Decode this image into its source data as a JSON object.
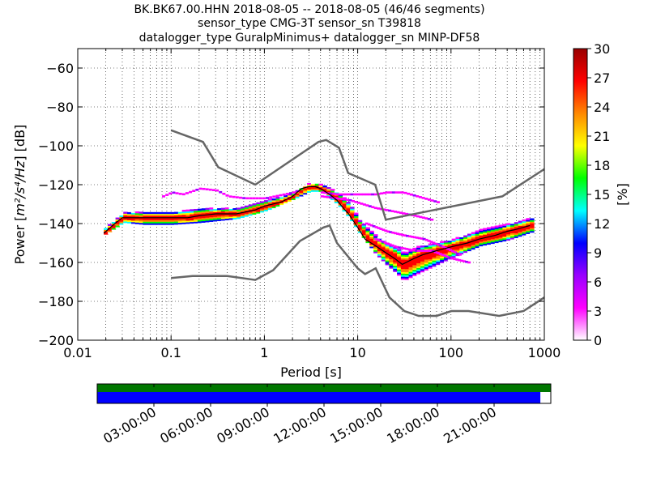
{
  "chart_data": {
    "type": "heatmap",
    "title_lines": [
      "BK.BK67.00.HHN   2018-08-05 -- 2018-08-05  (46/46 segments)",
      "sensor_type CMG-3T sensor_sn T39818",
      "datalogger_type GuralpMinimus+ datalogger_sn MINP-DF58"
    ],
    "xlabel": "Period [s]",
    "ylabel_prefix": "Power [",
    "ylabel_units": "m²/s⁴/Hz",
    "ylabel_suffix": "] [dB]",
    "x_scale": "log",
    "xlim": [
      0.01,
      1000
    ],
    "ylim": [
      -200,
      -50
    ],
    "x_ticks": [
      {
        "value": 0.01,
        "label": "0.01"
      },
      {
        "value": 0.1,
        "label": "0.1"
      },
      {
        "value": 1,
        "label": "1"
      },
      {
        "value": 10,
        "label": "10"
      },
      {
        "value": 100,
        "label": "100"
      },
      {
        "value": 1000,
        "label": "1000"
      }
    ],
    "y_ticks": [
      {
        "value": -60,
        "label": "−60"
      },
      {
        "value": -80,
        "label": "−80"
      },
      {
        "value": -100,
        "label": "−100"
      },
      {
        "value": -120,
        "label": "−120"
      },
      {
        "value": -140,
        "label": "−140"
      },
      {
        "value": -160,
        "label": "−160"
      },
      {
        "value": -180,
        "label": "−180"
      },
      {
        "value": -200,
        "label": "−200"
      }
    ],
    "grid": true,
    "colorbar": {
      "label": "[%]",
      "range": [
        0,
        30
      ],
      "ticks": [
        {
          "value": 0,
          "label": "0"
        },
        {
          "value": 3,
          "label": "3"
        },
        {
          "value": 6,
          "label": "6"
        },
        {
          "value": 9,
          "label": "9"
        },
        {
          "value": 12,
          "label": "12"
        },
        {
          "value": 15,
          "label": "15"
        },
        {
          "value": 18,
          "label": "18"
        },
        {
          "value": 21,
          "label": "21"
        },
        {
          "value": 24,
          "label": "24"
        },
        {
          "value": 27,
          "label": "27"
        },
        {
          "value": 30,
          "label": "30"
        }
      ],
      "colors": [
        "#ffffff",
        "#ff00ff",
        "#9900ff",
        "#0000ff",
        "#00ffff",
        "#00ff00",
        "#ffff00",
        "#ff8800",
        "#ff0000",
        "#990000"
      ]
    },
    "mode_line": [
      [
        0.019,
        -145
      ],
      [
        0.025,
        -140
      ],
      [
        0.03,
        -137
      ],
      [
        0.04,
        -137
      ],
      [
        0.06,
        -137
      ],
      [
        0.08,
        -137
      ],
      [
        0.1,
        -137
      ],
      [
        0.15,
        -137
      ],
      [
        0.2,
        -136
      ],
      [
        0.3,
        -135
      ],
      [
        0.5,
        -135
      ],
      [
        0.8,
        -133
      ],
      [
        1,
        -131
      ],
      [
        1.5,
        -129
      ],
      [
        2,
        -126
      ],
      [
        2.5,
        -122
      ],
      [
        3,
        -121
      ],
      [
        3.5,
        -121
      ],
      [
        4,
        -122
      ],
      [
        5,
        -125
      ],
      [
        6,
        -128
      ],
      [
        7,
        -132
      ],
      [
        8,
        -135
      ],
      [
        10,
        -142
      ],
      [
        12,
        -148
      ],
      [
        15,
        -151
      ],
      [
        20,
        -155
      ],
      [
        25,
        -158
      ],
      [
        30,
        -161
      ],
      [
        40,
        -158
      ],
      [
        50,
        -156
      ],
      [
        70,
        -154
      ],
      [
        100,
        -152
      ],
      [
        150,
        -150
      ],
      [
        200,
        -148
      ],
      [
        300,
        -146
      ],
      [
        400,
        -144
      ],
      [
        500,
        -143
      ],
      [
        700,
        -141
      ]
    ],
    "nhnm": [
      [
        0.1,
        -92
      ],
      [
        0.22,
        -98
      ],
      [
        0.32,
        -111
      ],
      [
        0.8,
        -120
      ],
      [
        3.8,
        -98
      ],
      [
        4.6,
        -97
      ],
      [
        6.3,
        -101
      ],
      [
        7.9,
        -114
      ],
      [
        15.4,
        -120
      ],
      [
        20,
        -138
      ],
      [
        354.8,
        -126
      ],
      [
        1000,
        -112
      ]
    ],
    "nlnm": [
      [
        0.1,
        -168
      ],
      [
        0.17,
        -167
      ],
      [
        0.4,
        -167
      ],
      [
        0.8,
        -169
      ],
      [
        1.24,
        -164
      ],
      [
        2.4,
        -149
      ],
      [
        4.3,
        -142
      ],
      [
        5,
        -141
      ],
      [
        6,
        -150
      ],
      [
        10,
        -163
      ],
      [
        12,
        -166
      ],
      [
        15.6,
        -163
      ],
      [
        21.9,
        -178
      ],
      [
        31.6,
        -185
      ],
      [
        45,
        -187.5
      ],
      [
        70,
        -187.5
      ],
      [
        101,
        -185
      ],
      [
        154,
        -185
      ],
      [
        328,
        -187.5
      ],
      [
        600,
        -185
      ],
      [
        1000,
        -178
      ]
    ],
    "spread_low": [
      [
        0.019,
        -146
      ],
      [
        0.03,
        -140
      ],
      [
        0.05,
        -141
      ],
      [
        0.1,
        -141
      ],
      [
        0.2,
        -140
      ],
      [
        0.5,
        -138
      ],
      [
        1,
        -134
      ],
      [
        2,
        -128
      ],
      [
        3,
        -124
      ],
      [
        4,
        -124
      ],
      [
        6,
        -131
      ],
      [
        8,
        -138
      ],
      [
        10,
        -145
      ],
      [
        15,
        -156
      ],
      [
        20,
        -162
      ],
      [
        25,
        -166
      ],
      [
        30,
        -170
      ],
      [
        40,
        -167
      ],
      [
        60,
        -163
      ],
      [
        100,
        -158
      ],
      [
        200,
        -152
      ],
      [
        400,
        -149
      ],
      [
        700,
        -145
      ]
    ],
    "spread_high": [
      [
        0.019,
        -142
      ],
      [
        0.03,
        -134
      ],
      [
        0.05,
        -134
      ],
      [
        0.1,
        -134
      ],
      [
        0.2,
        -132
      ],
      [
        0.5,
        -132
      ],
      [
        1,
        -128
      ],
      [
        2,
        -124
      ],
      [
        3,
        -119
      ],
      [
        4,
        -120
      ],
      [
        6,
        -124
      ],
      [
        8,
        -130
      ],
      [
        10,
        -138
      ],
      [
        15,
        -146
      ],
      [
        20,
        -150
      ],
      [
        25,
        -152
      ],
      [
        30,
        -155
      ],
      [
        40,
        -152
      ],
      [
        60,
        -150
      ],
      [
        100,
        -148
      ],
      [
        200,
        -143
      ],
      [
        400,
        -140
      ],
      [
        700,
        -137
      ]
    ],
    "outlier_tracks": [
      [
        [
          0.08,
          -126
        ],
        [
          0.1,
          -124
        ],
        [
          0.13,
          -125
        ],
        [
          0.2,
          -122
        ],
        [
          0.3,
          -123
        ],
        [
          0.4,
          -126
        ],
        [
          0.6,
          -127
        ],
        [
          1,
          -127
        ],
        [
          2,
          -124
        ]
      ],
      [
        [
          4,
          -124
        ],
        [
          6,
          -125
        ],
        [
          10,
          -125
        ],
        [
          15,
          -125
        ],
        [
          20,
          -124
        ],
        [
          30,
          -124
        ],
        [
          50,
          -127
        ],
        [
          70,
          -129
        ]
      ],
      [
        [
          4,
          -126
        ],
        [
          8,
          -128
        ],
        [
          15,
          -132
        ],
        [
          25,
          -134
        ],
        [
          40,
          -136
        ],
        [
          60,
          -138
        ]
      ],
      [
        [
          12,
          -140
        ],
        [
          20,
          -144
        ],
        [
          30,
          -146
        ],
        [
          50,
          -148
        ],
        [
          80,
          -152
        ],
        [
          120,
          -156
        ]
      ],
      [
        [
          15,
          -148
        ],
        [
          25,
          -152
        ],
        [
          40,
          -154
        ],
        [
          60,
          -154
        ],
        [
          100,
          -158
        ],
        [
          150,
          -160
        ]
      ]
    ],
    "timeline": {
      "ticks": [
        "03:00:00",
        "06:00:00",
        "09:00:00",
        "12:00:00",
        "15:00:00",
        "18:00:00",
        "21:00:00"
      ],
      "coverage_fraction": 0.977,
      "coverage_color": "#0000ff",
      "top_color": "#007700"
    }
  }
}
